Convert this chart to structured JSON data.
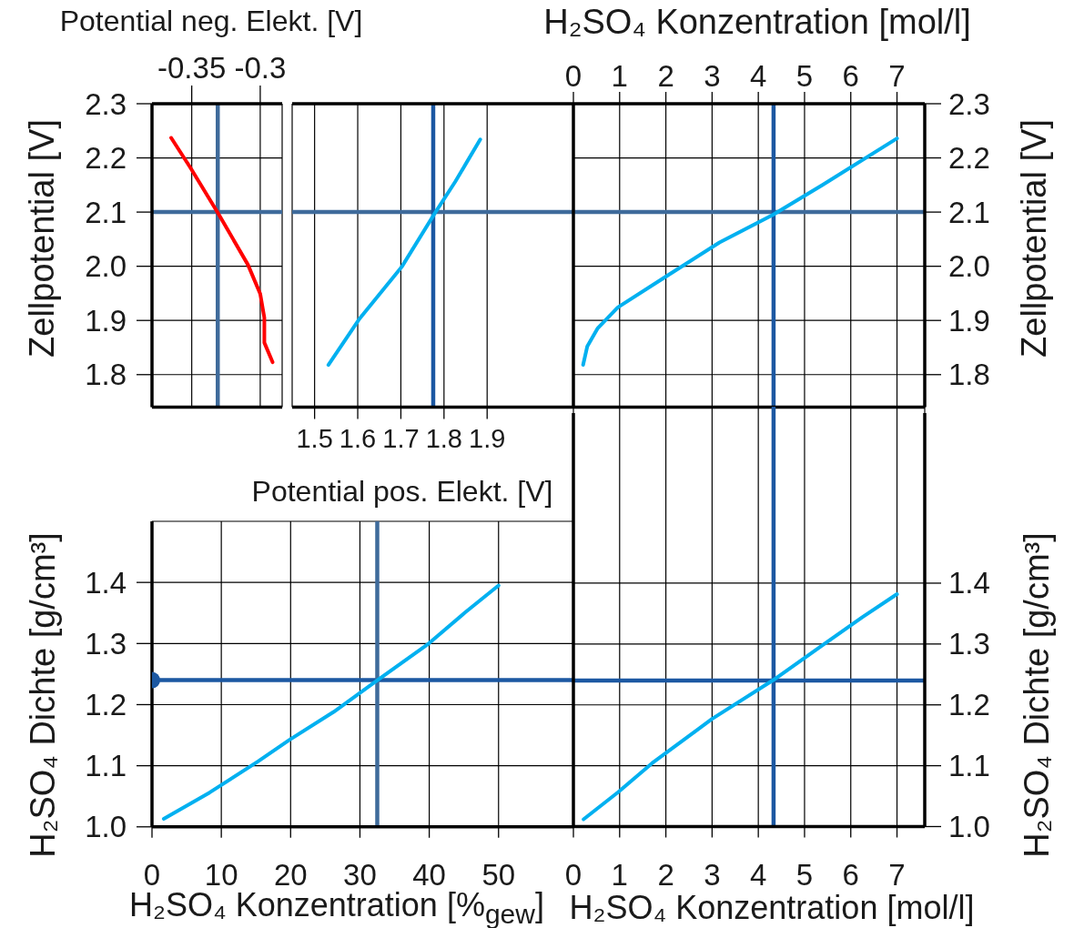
{
  "chart_data": [
    {
      "type": "line",
      "xlabel": "Potential neg. Elekt. [V]",
      "ylabel": "Zellpotential [V]",
      "xlim": [
        -0.379,
        -0.284
      ],
      "xticks": [
        -0.35,
        -0.3
      ],
      "ylim": [
        1.74,
        2.3
      ],
      "yticks": [
        1.8,
        1.9,
        {
          "value": 2,
          "label": "2.0"
        },
        2.1,
        2.2,
        2.3
      ],
      "grid": true,
      "series": [
        {
          "color": "#ff0000",
          "x": [
            -0.365,
            -0.351,
            -0.331,
            -0.309,
            -0.3,
            -0.297,
            -0.297,
            -0.291
          ],
          "values": [
            2.237,
            2.182,
            2.099,
            2.003,
            1.949,
            1.905,
            1.859,
            1.823
          ]
        }
      ],
      "ref_lines": [
        {
          "axis": "x",
          "value": -0.331,
          "color": "#3f6b9b"
        },
        {
          "axis": "y",
          "value": 2.1,
          "color": "#3f6b9b"
        }
      ]
    },
    {
      "type": "line",
      "xlabel": "Potential pos. Elekt. [V]",
      "xlim": [
        1.448,
        2.1
      ],
      "xticks": [
        1.5,
        1.6,
        1.7,
        1.8,
        1.9
      ],
      "ylim": [
        1.74,
        2.3
      ],
      "yticks": [
        1.8,
        1.9,
        2,
        2.1,
        2.2,
        2.3
      ],
      "tick_labels": "x",
      "grid": true,
      "series": [
        {
          "color": "#00b0f0",
          "x": [
            1.532,
            1.603,
            1.703,
            1.778,
            1.826,
            1.884
          ],
          "values": [
            1.818,
            1.902,
            2.0,
            2.097,
            2.156,
            2.234
          ]
        }
      ],
      "ref_lines": [
        {
          "axis": "y",
          "value": 2.1,
          "color": "#3f6b9b"
        },
        {
          "axis": "x",
          "value": 1.775,
          "color": "#1c58a2"
        }
      ]
    },
    {
      "type": "line",
      "xlabel": "H₂SO₄ Konzentration [mol/l]",
      "y2label": "Zellpotential [V]",
      "xlim": [
        0,
        7.6
      ],
      "xticks": [
        0,
        1,
        2,
        3,
        4,
        5,
        6,
        7
      ],
      "y2lim": [
        1.74,
        2.3
      ],
      "y2ticks": [
        1.8,
        1.9,
        {
          "value": 2,
          "label": "2.0"
        },
        2.1,
        2.2,
        2.3
      ],
      "grid": true,
      "series": [
        {
          "color": "#00b0f0",
          "axis": "y2",
          "x": [
            0.21,
            0.3,
            0.52,
            0.96,
            2.0,
            3.16,
            4.32,
            5.39,
            7.0
          ],
          "values": [
            1.818,
            1.852,
            1.885,
            1.924,
            1.981,
            2.044,
            2.095,
            2.15,
            2.236
          ]
        }
      ],
      "ref_lines": [
        {
          "axis": "y2",
          "value": 2.1,
          "color": "#3f6b9b"
        },
        {
          "axis": "x",
          "value": 4.33,
          "color": "#1c58a2"
        }
      ]
    },
    {
      "type": "line",
      "xlabel": "H₂SO₄ Konzentration [%$_{gew}$]",
      "ylabel": "H₂SO₄ Dichte [g/cm³]",
      "xlim": [
        0,
        60.8
      ],
      "xticks": [
        0,
        10,
        20,
        30,
        40,
        50
      ],
      "ylim": [
        1,
        1.5
      ],
      "yticks": [
        {
          "value": 1,
          "label": "1.0"
        },
        1.1,
        1.2,
        1.3,
        1.4
      ],
      "grid": true,
      "series": [
        {
          "color": "#00b0f0",
          "x": [
            1.7,
            8.3,
            15.3,
            19.8,
            26.2,
            32.3,
            39.7,
            45.2,
            50
          ],
          "values": [
            1.013,
            1.056,
            1.107,
            1.142,
            1.188,
            1.238,
            1.298,
            1.351,
            1.395
          ]
        },
        {
          "type": "scatter",
          "color": "#1c58a2",
          "x": [
            0
          ],
          "values": [
            1.24
          ]
        }
      ],
      "ref_lines": [
        {
          "axis": "y",
          "value": 1.24,
          "color": "#1c58a2"
        },
        {
          "axis": "x",
          "value": 32.5,
          "color": "#3f6b9b"
        }
      ]
    },
    {
      "type": "line",
      "xlabel": "H₂SO₄ Konzentration [mol/l]",
      "y2label": "H₂SO₄ Dichte [g/cm³]",
      "xlim": [
        0,
        7.6
      ],
      "xticks": [
        0,
        1,
        2,
        3,
        4,
        5,
        6,
        7
      ],
      "y2lim": [
        1,
        1.69
      ],
      "y2ticks": [
        {
          "value": 1,
          "label": "1.0"
        },
        1.1,
        1.2,
        1.3,
        1.4
      ],
      "grid": true,
      "series": [
        {
          "color": "#00b0f0",
          "axis": "y2",
          "x": [
            0.22,
            0.96,
            1.7,
            3.0,
            4.33,
            5.39,
            6.25,
            7.0
          ],
          "values": [
            1.012,
            1.056,
            1.104,
            1.177,
            1.241,
            1.298,
            1.344,
            1.382
          ]
        }
      ],
      "ref_lines": [
        {
          "axis": "y2",
          "value": 1.24,
          "color": "#1c58a2"
        },
        {
          "axis": "x",
          "value": 4.33,
          "color": "#1c58a2"
        }
      ]
    }
  ]
}
